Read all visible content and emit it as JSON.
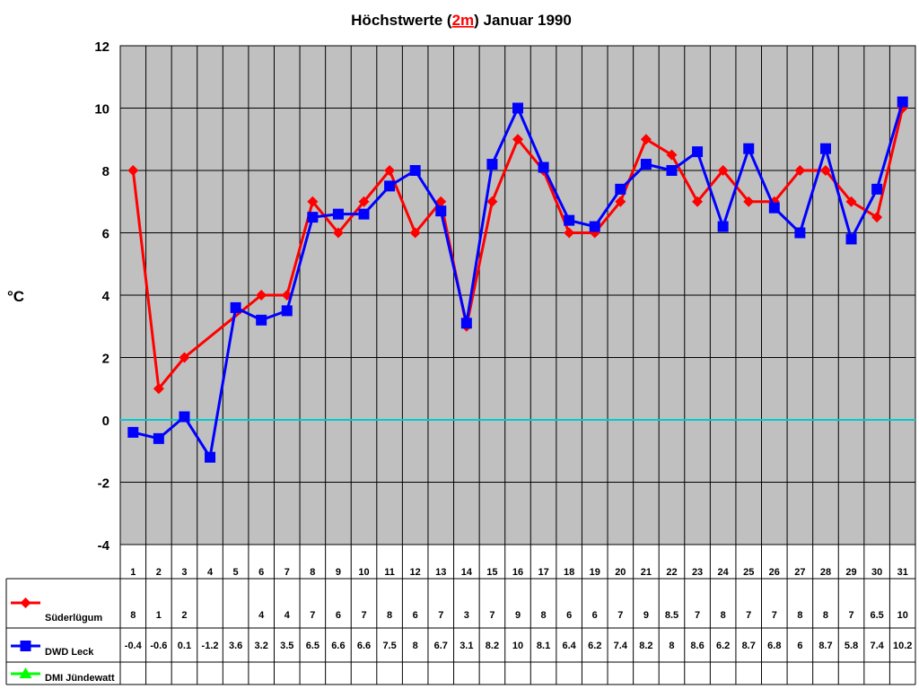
{
  "chart_data": {
    "type": "line",
    "title_parts": [
      "Höchstwerte (",
      "2m",
      ") Januar 1990"
    ],
    "ylabel": "°C",
    "ylim": [
      -4,
      12
    ],
    "yticks": [
      -4,
      -2,
      0,
      2,
      4,
      6,
      8,
      10,
      12
    ],
    "grid": true,
    "legend": "data-table",
    "categories": [
      "1",
      "2",
      "3",
      "4",
      "5",
      "6",
      "7",
      "8",
      "9",
      "10",
      "11",
      "12",
      "13",
      "14",
      "15",
      "16",
      "17",
      "18",
      "19",
      "20",
      "21",
      "22",
      "23",
      "24",
      "25",
      "26",
      "27",
      "28",
      "29",
      "30",
      "31"
    ],
    "series": [
      {
        "name": "Süderlügum",
        "color": "#ff0000",
        "marker": "diamond",
        "values": [
          8,
          1,
          2,
          null,
          null,
          4,
          4,
          7,
          6,
          7,
          8,
          6,
          7,
          3,
          7,
          9,
          8,
          6,
          6,
          7,
          9,
          8.5,
          7,
          8,
          7,
          7,
          8,
          8,
          7,
          6.5,
          10
        ]
      },
      {
        "name": "DWD Leck",
        "color": "#0000ff",
        "marker": "square",
        "values": [
          -0.4,
          -0.6,
          0.1,
          -1.2,
          3.6,
          3.2,
          3.5,
          6.5,
          6.6,
          6.6,
          7.5,
          8,
          6.7,
          3.1,
          8.2,
          10,
          8.1,
          6.4,
          6.2,
          7.4,
          8.2,
          8,
          8.6,
          6.2,
          8.7,
          6.8,
          6,
          8.7,
          5.8,
          7.4,
          10.2
        ]
      },
      {
        "name": "DMI Jündewatt",
        "color": "#00ff00",
        "marker": "triangle",
        "values": [
          null,
          null,
          null,
          null,
          null,
          null,
          null,
          null,
          null,
          null,
          null,
          null,
          null,
          null,
          null,
          null,
          null,
          null,
          null,
          null,
          null,
          null,
          null,
          null,
          null,
          null,
          null,
          null,
          null,
          null,
          null
        ]
      }
    ],
    "colors": {
      "plot_bg": "#c0c0c0",
      "zero_line": "#00cccc",
      "title_accent": "#ff0000"
    }
  }
}
